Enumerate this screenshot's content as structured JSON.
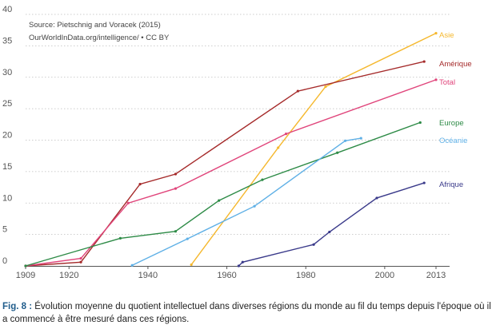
{
  "chart_data": {
    "type": "line",
    "title": "",
    "xlabel": "",
    "ylabel": "",
    "xlim": [
      1909,
      2013
    ],
    "ylim": [
      0,
      40
    ],
    "x_ticks": [
      1909,
      1920,
      1940,
      1960,
      1980,
      2000,
      2013
    ],
    "y_ticks": [
      0,
      5,
      10,
      15,
      20,
      25,
      30,
      35,
      40
    ],
    "grid": "horizontal dotted",
    "legend": "labels at line ends (right)",
    "source_lines": [
      "Source: Pietschnig and Voracek (2015)",
      "OurWorldInData.org/intelligence/ • CC BY"
    ],
    "series": [
      {
        "name": "Asie",
        "color": "#f5b82e",
        "x": [
          1951,
          1973,
          1985,
          2013
        ],
        "y": [
          0.2,
          18.8,
          28.5,
          37.0
        ]
      },
      {
        "name": "Amérique",
        "color": "#a52a2a",
        "x": [
          1909,
          1923,
          1938,
          1947,
          1978,
          2010
        ],
        "y": [
          0.0,
          0.6,
          13.0,
          14.6,
          27.8,
          32.5
        ]
      },
      {
        "name": "Total",
        "color": "#e0457b",
        "x": [
          1909,
          1923,
          1935,
          1947,
          1975,
          2013
        ],
        "y": [
          0.0,
          1.2,
          10.0,
          12.3,
          21.0,
          29.6
        ]
      },
      {
        "name": "Europe",
        "color": "#2e8b47",
        "x": [
          1909,
          1933,
          1947,
          1958,
          1969,
          1988,
          2009
        ],
        "y": [
          0.0,
          4.4,
          5.5,
          10.4,
          13.7,
          18.0,
          22.8
        ]
      },
      {
        "name": "Océanie",
        "color": "#5fb0e6",
        "x": [
          1936,
          1950,
          1967,
          1990,
          1994
        ],
        "y": [
          0.1,
          4.3,
          9.5,
          19.9,
          20.3
        ]
      },
      {
        "name": "Afrique",
        "color": "#3a3a8a",
        "x": [
          1963,
          1964,
          1982,
          1986,
          1998,
          2010
        ],
        "y": [
          0.0,
          0.6,
          3.4,
          5.4,
          10.8,
          13.2
        ]
      }
    ]
  },
  "caption": {
    "fig_label": "Fig. 8 :",
    "text": " Évolution moyenne du quotient intellectuel dans diverses régions du monde au fil du temps depuis l'époque où il a commencé à être mesuré dans ces régions."
  }
}
